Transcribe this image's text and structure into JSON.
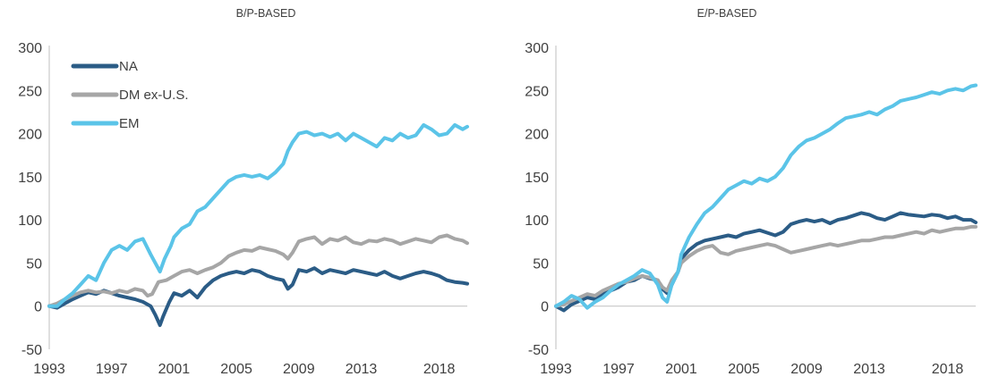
{
  "chart_data": [
    {
      "type": "line",
      "title": "B/P-BASED",
      "xlabel": "",
      "ylabel": "",
      "xlim": [
        1993,
        2019.8
      ],
      "ylim": [
        -50,
        300
      ],
      "yticks": [
        -50,
        0,
        50,
        100,
        150,
        200,
        250,
        300
      ],
      "xticks": [
        1993,
        1997,
        2001,
        2005,
        2009,
        2013,
        2018
      ],
      "grid": false,
      "legend": "top-left",
      "series": [
        {
          "name": "NA",
          "color": "#2b5c86",
          "x": [
            1993,
            1993.5,
            1994,
            1994.5,
            1995,
            1995.5,
            1996,
            1996.5,
            1997,
            1997.5,
            1998,
            1998.5,
            1999,
            1999.5,
            1999.8,
            2000.1,
            2000.3,
            2000.7,
            2001,
            2001.5,
            2002,
            2002.5,
            2003,
            2003.5,
            2004,
            2004.5,
            2005,
            2005.5,
            2006,
            2006.5,
            2007,
            2007.5,
            2008,
            2008.3,
            2008.6,
            2009,
            2009.5,
            2010,
            2010.5,
            2011,
            2011.5,
            2012,
            2012.5,
            2013,
            2013.5,
            2014,
            2014.5,
            2015,
            2015.5,
            2016,
            2016.5,
            2017,
            2017.5,
            2018,
            2018.5,
            2019,
            2019.5,
            2019.8
          ],
          "y": [
            0,
            -2,
            3,
            8,
            12,
            16,
            14,
            18,
            15,
            12,
            10,
            8,
            5,
            0,
            -10,
            -22,
            -12,
            5,
            15,
            12,
            18,
            10,
            22,
            30,
            35,
            38,
            40,
            38,
            42,
            40,
            35,
            32,
            30,
            20,
            25,
            42,
            40,
            44,
            38,
            42,
            40,
            38,
            42,
            40,
            38,
            36,
            40,
            35,
            32,
            35,
            38,
            40,
            38,
            35,
            30,
            28,
            27,
            26
          ]
        },
        {
          "name": "DM ex-U.S.",
          "color": "#a6a6a6",
          "x": [
            1993,
            1993.5,
            1994,
            1994.5,
            1995,
            1995.5,
            1996,
            1996.5,
            1997,
            1997.5,
            1998,
            1998.5,
            1999,
            1999.3,
            1999.6,
            2000,
            2000.5,
            2001,
            2001.5,
            2002,
            2002.5,
            2003,
            2003.5,
            2004,
            2004.5,
            2005,
            2005.5,
            2006,
            2006.5,
            2007,
            2007.5,
            2008,
            2008.3,
            2008.6,
            2009,
            2009.5,
            2010,
            2010.5,
            2011,
            2011.5,
            2012,
            2012.5,
            2013,
            2013.5,
            2014,
            2014.5,
            2015,
            2015.5,
            2016,
            2016.5,
            2017,
            2017.5,
            2018,
            2018.5,
            2019,
            2019.5,
            2019.8
          ],
          "y": [
            0,
            3,
            8,
            12,
            16,
            18,
            16,
            17,
            15,
            18,
            16,
            20,
            18,
            12,
            14,
            28,
            30,
            35,
            40,
            42,
            38,
            42,
            45,
            50,
            58,
            62,
            65,
            64,
            68,
            66,
            64,
            60,
            55,
            62,
            75,
            78,
            80,
            72,
            78,
            76,
            80,
            74,
            72,
            76,
            75,
            78,
            76,
            72,
            75,
            78,
            76,
            74,
            80,
            82,
            78,
            76,
            73
          ]
        },
        {
          "name": "EM",
          "color": "#5bc4e8",
          "x": [
            1993,
            1993.5,
            1994,
            1994.5,
            1995,
            1995.5,
            1996,
            1996.5,
            1997,
            1997.5,
            1998,
            1998.5,
            1999,
            1999.5,
            1999.8,
            2000.1,
            2000.4,
            2000.8,
            2001,
            2001.5,
            2002,
            2002.5,
            2003,
            2003.5,
            2004,
            2004.5,
            2005,
            2005.5,
            2006,
            2006.5,
            2007,
            2007.5,
            2008,
            2008.3,
            2008.6,
            2009,
            2009.5,
            2010,
            2010.5,
            2011,
            2011.5,
            2012,
            2012.5,
            2013,
            2013.5,
            2014,
            2014.5,
            2015,
            2015.5,
            2016,
            2016.5,
            2017,
            2017.5,
            2018,
            2018.5,
            2019,
            2019.5,
            2019.8
          ],
          "y": [
            0,
            0,
            8,
            15,
            25,
            35,
            30,
            50,
            65,
            70,
            65,
            75,
            78,
            60,
            50,
            40,
            55,
            70,
            80,
            90,
            95,
            110,
            115,
            125,
            135,
            145,
            150,
            152,
            150,
            152,
            148,
            155,
            165,
            180,
            190,
            200,
            202,
            198,
            200,
            196,
            200,
            192,
            200,
            195,
            190,
            185,
            195,
            192,
            200,
            195,
            198,
            210,
            205,
            198,
            200,
            210,
            205,
            208
          ]
        }
      ]
    },
    {
      "type": "line",
      "title": "E/P-BASED",
      "xlabel": "",
      "ylabel": "",
      "xlim": [
        1993,
        2019.8
      ],
      "ylim": [
        -50,
        300
      ],
      "yticks": [
        -50,
        0,
        50,
        100,
        150,
        200,
        250,
        300
      ],
      "xticks": [
        1993,
        1997,
        2001,
        2005,
        2009,
        2013,
        2018
      ],
      "grid": false,
      "legend": "none",
      "series": [
        {
          "name": "NA",
          "color": "#2b5c86",
          "x": [
            1993,
            1993.5,
            1994,
            1994.5,
            1995,
            1995.5,
            1996,
            1996.5,
            1997,
            1997.5,
            1998,
            1998.5,
            1999,
            1999.5,
            1999.8,
            2000.1,
            2000.4,
            2000.8,
            2001,
            2001.5,
            2002,
            2002.5,
            2003,
            2003.5,
            2004,
            2004.5,
            2005,
            2005.5,
            2006,
            2006.5,
            2007,
            2007.5,
            2008,
            2008.5,
            2009,
            2009.5,
            2010,
            2010.5,
            2011,
            2011.5,
            2012,
            2012.5,
            2013,
            2013.5,
            2014,
            2014.5,
            2015,
            2015.5,
            2016,
            2016.5,
            2017,
            2017.5,
            2018,
            2018.5,
            2019,
            2019.5,
            2019.8
          ],
          "y": [
            0,
            -5,
            2,
            6,
            10,
            8,
            15,
            18,
            22,
            28,
            30,
            35,
            32,
            30,
            20,
            15,
            25,
            40,
            55,
            65,
            72,
            76,
            78,
            80,
            82,
            80,
            84,
            86,
            88,
            85,
            82,
            86,
            95,
            98,
            100,
            98,
            100,
            96,
            100,
            102,
            105,
            108,
            106,
            102,
            100,
            104,
            108,
            106,
            105,
            104,
            106,
            105,
            102,
            104,
            100,
            100,
            97
          ]
        },
        {
          "name": "DM ex-U.S.",
          "color": "#a6a6a6",
          "x": [
            1993,
            1993.5,
            1994,
            1994.5,
            1995,
            1995.5,
            1996,
            1996.5,
            1997,
            1997.5,
            1998,
            1998.5,
            1999,
            1999.5,
            1999.8,
            2000.1,
            2000.4,
            2000.8,
            2001,
            2001.5,
            2002,
            2002.5,
            2003,
            2003.5,
            2004,
            2004.5,
            2005,
            2005.5,
            2006,
            2006.5,
            2007,
            2007.5,
            2008,
            2008.5,
            2009,
            2009.5,
            2010,
            2010.5,
            2011,
            2011.5,
            2012,
            2012.5,
            2013,
            2013.5,
            2014,
            2014.5,
            2015,
            2015.5,
            2016,
            2016.5,
            2017,
            2017.5,
            2018,
            2018.5,
            2019,
            2019.5,
            2019.8
          ],
          "y": [
            0,
            2,
            6,
            10,
            14,
            12,
            18,
            22,
            26,
            28,
            32,
            35,
            33,
            30,
            22,
            18,
            30,
            40,
            50,
            58,
            64,
            68,
            70,
            62,
            60,
            64,
            66,
            68,
            70,
            72,
            70,
            66,
            62,
            64,
            66,
            68,
            70,
            72,
            70,
            72,
            74,
            76,
            76,
            78,
            80,
            80,
            82,
            84,
            86,
            84,
            88,
            86,
            88,
            90,
            90,
            92,
            92
          ]
        },
        {
          "name": "EM",
          "color": "#5bc4e8",
          "x": [
            1993,
            1993.5,
            1994,
            1994.5,
            1995,
            1995.5,
            1996,
            1996.5,
            1997,
            1997.5,
            1998,
            1998.5,
            1999,
            1999.5,
            1999.8,
            2000.1,
            2000.4,
            2000.8,
            2001,
            2001.5,
            2002,
            2002.5,
            2003,
            2003.5,
            2004,
            2004.5,
            2005,
            2005.5,
            2006,
            2006.5,
            2007,
            2007.5,
            2008,
            2008.5,
            2009,
            2009.5,
            2010,
            2010.5,
            2011,
            2011.5,
            2012,
            2012.5,
            2013,
            2013.5,
            2014,
            2014.5,
            2015,
            2015.5,
            2016,
            2016.5,
            2017,
            2017.5,
            2018,
            2018.5,
            2019,
            2019.5,
            2019.8
          ],
          "y": [
            0,
            5,
            12,
            8,
            -2,
            5,
            10,
            18,
            25,
            30,
            35,
            42,
            38,
            25,
            10,
            5,
            25,
            40,
            60,
            80,
            95,
            108,
            115,
            125,
            135,
            140,
            145,
            142,
            148,
            145,
            150,
            160,
            175,
            185,
            192,
            195,
            200,
            205,
            212,
            218,
            220,
            222,
            225,
            222,
            228,
            232,
            238,
            240,
            242,
            245,
            248,
            246,
            250,
            252,
            250,
            255,
            256
          ]
        }
      ]
    }
  ]
}
